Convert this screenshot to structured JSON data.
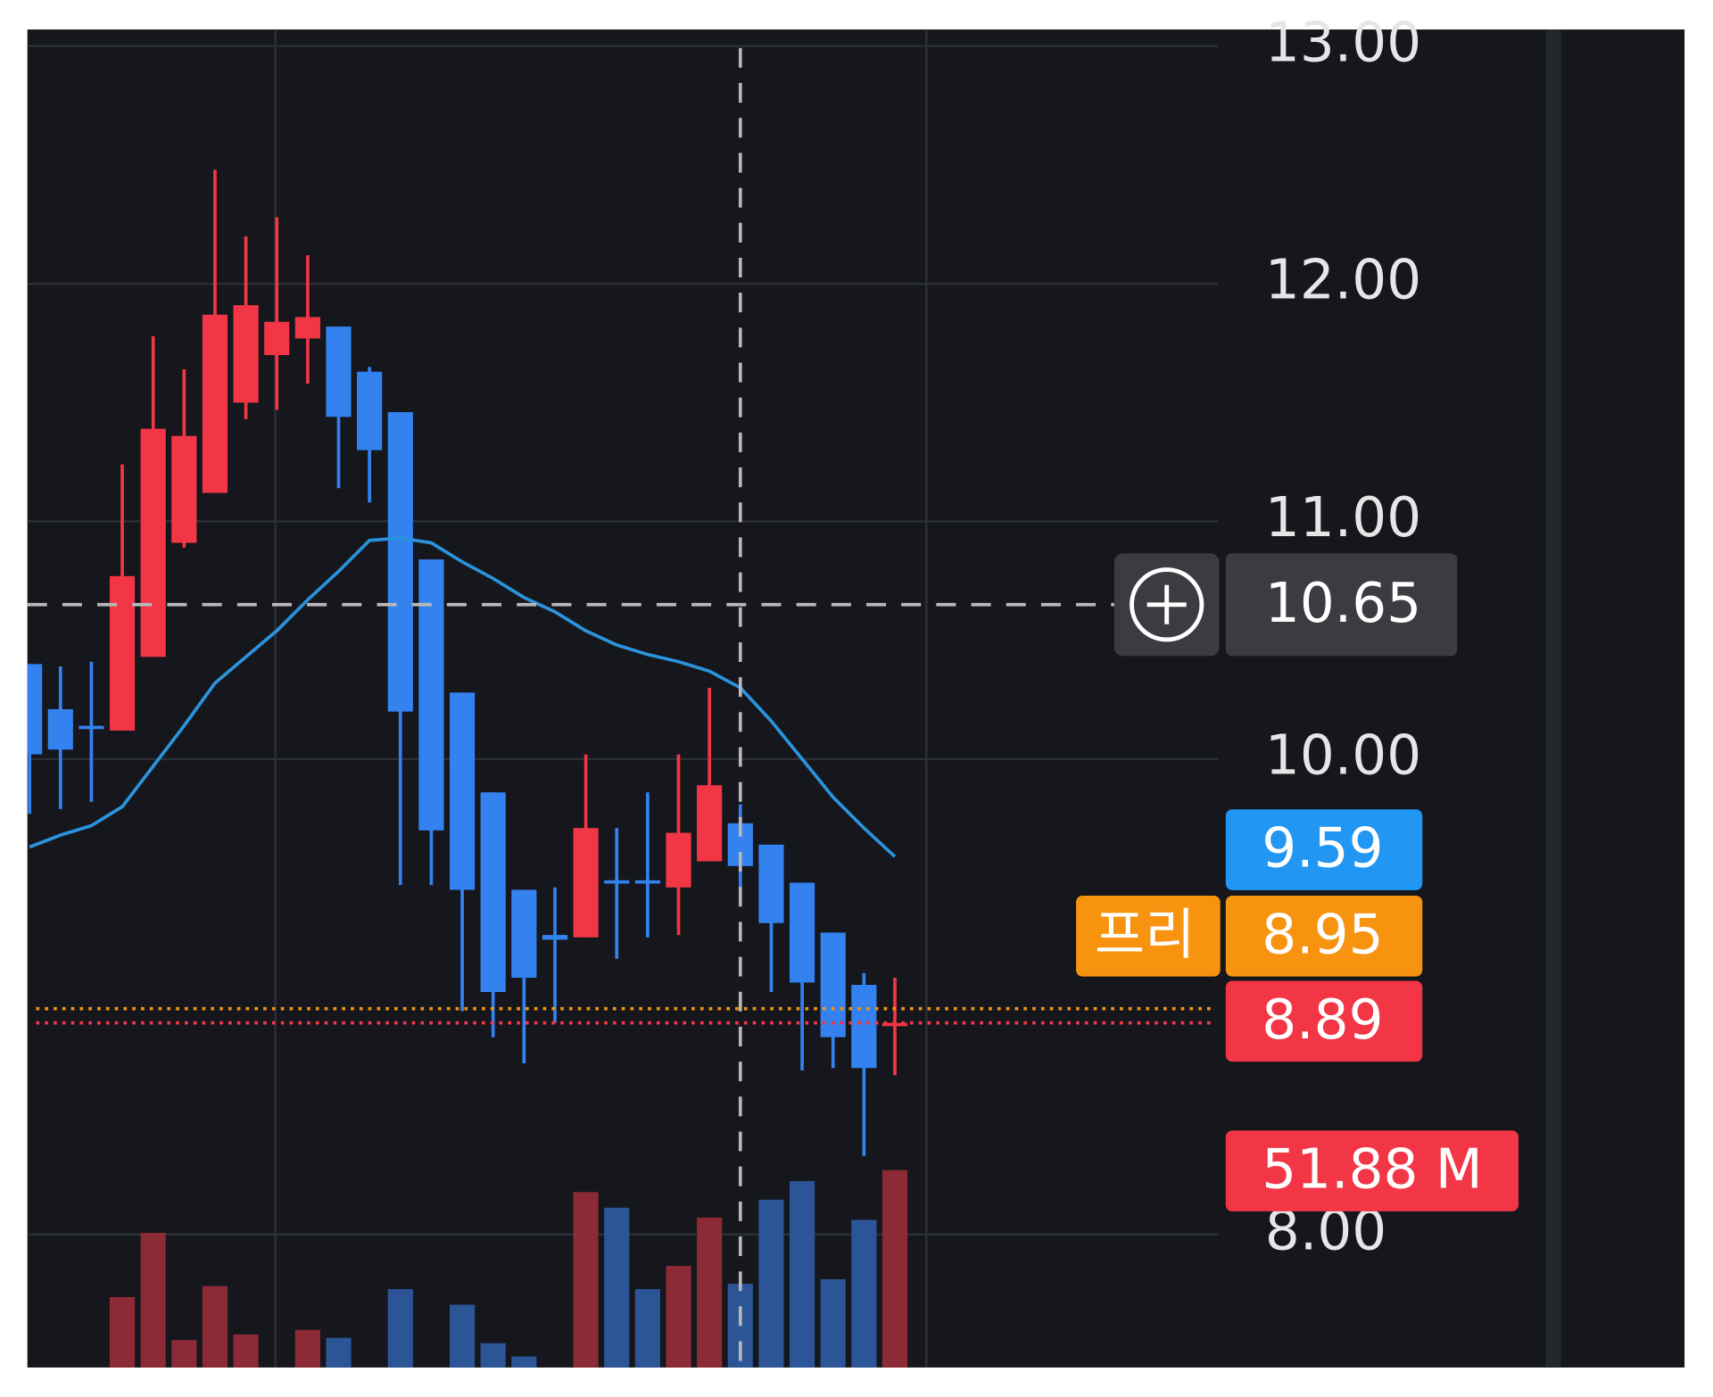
{
  "chart_data": {
    "type": "candlestick",
    "up_color": "#f23645",
    "down_color": "#3482f0",
    "candles": [
      {
        "open": 10.4,
        "high": 10.4,
        "low": 9.77,
        "close": 10.02
      },
      {
        "open": 10.21,
        "high": 10.39,
        "low": 9.79,
        "close": 10.04
      },
      {
        "open": 10.14,
        "high": 10.41,
        "low": 9.82,
        "close": 10.13
      },
      {
        "open": 10.12,
        "high": 11.24,
        "low": 10.12,
        "close": 10.77
      },
      {
        "open": 10.43,
        "high": 11.78,
        "low": 10.43,
        "close": 11.39
      },
      {
        "open": 10.91,
        "high": 11.64,
        "low": 10.89,
        "close": 11.36
      },
      {
        "open": 11.12,
        "high": 12.48,
        "low": 11.12,
        "close": 11.87
      },
      {
        "open": 11.5,
        "high": 12.2,
        "low": 11.43,
        "close": 11.91
      },
      {
        "open": 11.7,
        "high": 12.28,
        "low": 11.47,
        "close": 11.84
      },
      {
        "open": 11.77,
        "high": 12.12,
        "low": 11.58,
        "close": 11.86
      },
      {
        "open": 11.82,
        "high": 11.82,
        "low": 11.14,
        "close": 11.44
      },
      {
        "open": 11.63,
        "high": 11.65,
        "low": 11.08,
        "close": 11.3
      },
      {
        "open": 11.46,
        "high": 11.46,
        "low": 9.47,
        "close": 10.2
      },
      {
        "open": 10.84,
        "high": 10.84,
        "low": 9.47,
        "close": 9.7
      },
      {
        "open": 10.28,
        "high": 10.28,
        "low": 8.94,
        "close": 9.45
      },
      {
        "open": 9.86,
        "high": 9.86,
        "low": 8.83,
        "close": 9.02
      },
      {
        "open": 9.45,
        "high": 9.45,
        "low": 8.72,
        "close": 9.08
      },
      {
        "open": 9.26,
        "high": 9.46,
        "low": 8.89,
        "close": 9.24
      },
      {
        "open": 9.25,
        "high": 10.02,
        "low": 9.25,
        "close": 9.71
      },
      {
        "open": 9.49,
        "high": 9.71,
        "low": 9.16,
        "close": 9.48
      },
      {
        "open": 9.49,
        "high": 9.86,
        "low": 9.25,
        "close": 9.48
      },
      {
        "open": 9.46,
        "high": 10.02,
        "low": 9.26,
        "close": 9.69
      },
      {
        "open": 9.57,
        "high": 10.3,
        "low": 9.57,
        "close": 9.89
      },
      {
        "open": 9.73,
        "high": 9.81,
        "low": 9.46,
        "close": 9.55
      },
      {
        "open": 9.64,
        "high": 9.64,
        "low": 9.02,
        "close": 9.31
      },
      {
        "open": 9.48,
        "high": 9.48,
        "low": 8.69,
        "close": 9.06
      },
      {
        "open": 9.27,
        "high": 9.27,
        "low": 8.7,
        "close": 8.83
      },
      {
        "open": 9.05,
        "high": 9.1,
        "low": 8.33,
        "close": 8.7
      },
      {
        "open": 8.88,
        "high": 9.08,
        "low": 8.67,
        "close": 8.89
      }
    ],
    "ma": {
      "color": "#2b93dd",
      "values": [
        9.63,
        9.68,
        9.72,
        9.8,
        9.97,
        10.14,
        10.32,
        10.43,
        10.54,
        10.67,
        10.79,
        10.92,
        10.93,
        10.91,
        10.83,
        10.76,
        10.68,
        10.62,
        10.54,
        10.48,
        10.44,
        10.41,
        10.37,
        10.3,
        10.16,
        10.0,
        9.84,
        9.71,
        9.59
      ]
    },
    "volume": {
      "up_color": "#8c2a35",
      "down_color": "#2b5596",
      "values": [
        null,
        null,
        null,
        18.5,
        35.4,
        7.2,
        21.4,
        8.7,
        null,
        9.9,
        7.8,
        null,
        20.6,
        null,
        16.5,
        6.4,
        2.9,
        null,
        46.1,
        42.0,
        20.6,
        26.7,
        39.4,
        22.0,
        44.1,
        49.0,
        23.2,
        38.8,
        51.88
      ],
      "value_labels": [
        null,
        null,
        null,
        null,
        null,
        null,
        null,
        null,
        null,
        null,
        null,
        null,
        null,
        null,
        null,
        null,
        null,
        null,
        null,
        null,
        null,
        null,
        null,
        null,
        null,
        null,
        null,
        null,
        "51.88 M"
      ],
      "ylim": [
        0,
        62
      ]
    },
    "premarket": {
      "label": "프리",
      "value": 8.95,
      "color": "#f7930f"
    },
    "crosshair": {
      "value": 10.65
    },
    "ylim": [
      7.44,
      13.07
    ],
    "yticks": [
      {
        "value": 8,
        "label": "8.00"
      },
      {
        "value": 10,
        "label": "10.00"
      },
      {
        "value": 11,
        "label": "11.00"
      },
      {
        "value": 12,
        "label": "12.00"
      },
      {
        "value": 13,
        "label": "13.00"
      }
    ],
    "grid": true
  }
}
